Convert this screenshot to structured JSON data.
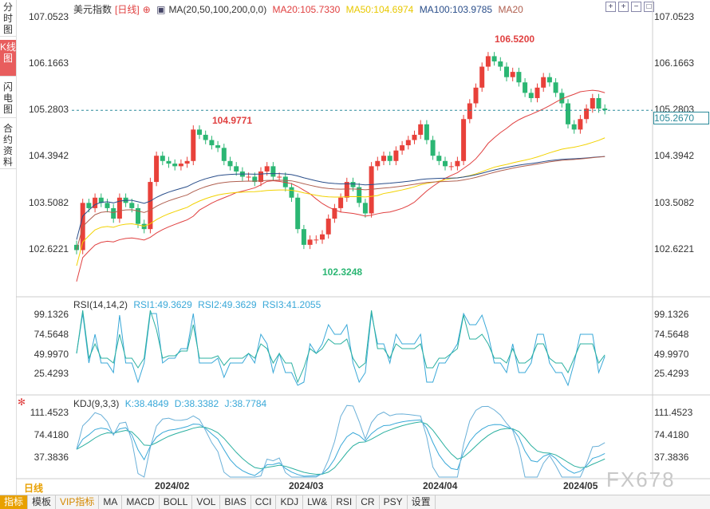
{
  "sidebar": {
    "tabs": [
      {
        "label": "分时图",
        "active": false
      },
      {
        "label": "K线图",
        "active": true
      },
      {
        "label": "闪电图",
        "active": false
      },
      {
        "label": "合约资料",
        "active": false
      }
    ]
  },
  "main_chart": {
    "symbol": "美元指数",
    "period": "[日线]",
    "ma_params": "MA(20,50,100,200,0,0)",
    "ma20": "MA20:105.7330",
    "ma50": "MA50:104.6974",
    "ma100": "MA100:103.9785",
    "ma200": "MA20",
    "y_ticks": [
      "107.0523",
      "106.1663",
      "105.2803",
      "104.3942",
      "103.5082",
      "102.6221"
    ],
    "current_price": "105.2670",
    "high_label": "106.5200",
    "high_label2": "104.9771",
    "low_label": "102.3248"
  },
  "rsi": {
    "title": "RSI(14,14,2)",
    "rsi1": "RSI1:49.3629",
    "rsi2": "RSI2:49.3629",
    "rsi3": "RSI3:41.2055",
    "y_ticks": [
      "99.1326",
      "74.5648",
      "49.9970",
      "25.4293"
    ]
  },
  "kdj": {
    "title": "KDJ(9,3,3)",
    "k": "K:38.4849",
    "d": "D:38.3382",
    "j": "J:38.7784",
    "y_ticks": [
      "111.4523",
      "74.4180",
      "37.3836"
    ]
  },
  "x_axis": [
    "2024/02",
    "2024/03",
    "2024/04",
    "2024/05"
  ],
  "period_label": "日线",
  "watermark": "FX678",
  "bottom_tabs": [
    "指标",
    "模板",
    "VIP指标",
    "MA",
    "MACD",
    "BOLL",
    "VOL",
    "BIAS",
    "CCI",
    "KDJ",
    "LW&",
    "RSI",
    "CR",
    "PSY",
    "设置"
  ],
  "colors": {
    "up": "#e8413a",
    "down": "#2bb673",
    "ma20": "#e04040",
    "ma50": "#f2d200",
    "ma100": "#2a4e8a",
    "ma200": "#b06050"
  }
}
